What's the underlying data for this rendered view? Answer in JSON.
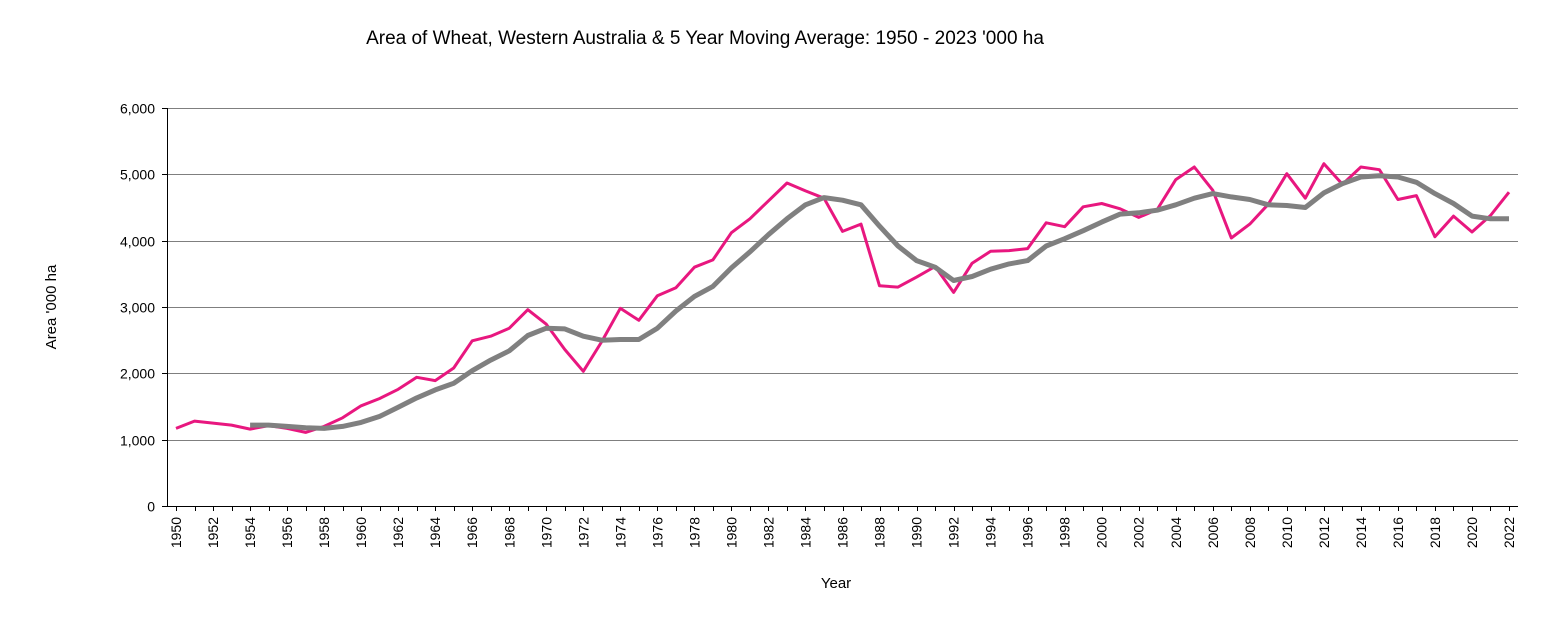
{
  "chart_data": {
    "type": "line",
    "title": "Area of Wheat, Western Australia & 5 Year Moving Average: 1950 - 2023 '000 ha",
    "xlabel": "Year",
    "ylabel": "Area '000 ha",
    "ylim": [
      0,
      6000
    ],
    "yticks": [
      0,
      1000,
      2000,
      3000,
      4000,
      5000,
      6000
    ],
    "ytick_labels": [
      "0",
      "1,000",
      "2,000",
      "3,000",
      "4,000",
      "5,000",
      "6,000"
    ],
    "xlim": [
      1950,
      2022
    ],
    "xticks": [
      1950,
      1952,
      1954,
      1956,
      1958,
      1960,
      1962,
      1964,
      1966,
      1968,
      1970,
      1972,
      1974,
      1976,
      1978,
      1980,
      1982,
      1984,
      1986,
      1988,
      1990,
      1992,
      1994,
      1996,
      1998,
      2000,
      2002,
      2004,
      2006,
      2008,
      2010,
      2012,
      2014,
      2016,
      2018,
      2020,
      2022
    ],
    "xtick_labels": [
      "1950",
      "1952",
      "1954",
      "1956",
      "1958",
      "1960",
      "1962",
      "1964",
      "1966",
      "1968",
      "1970",
      "1972",
      "1974",
      "1976",
      "1978",
      "1980",
      "1982",
      "1984",
      "1986",
      "1988",
      "1990",
      "1992",
      "1994",
      "1996",
      "1998",
      "2000",
      "2002",
      "2004",
      "2006",
      "2008",
      "2010",
      "2012",
      "2014",
      "2016",
      "2018",
      "2020",
      "2022"
    ],
    "grid": "horizontal",
    "series": [
      {
        "name": "Area of Wheat",
        "color": "#e8177f",
        "x": [
          1950,
          1951,
          1952,
          1953,
          1954,
          1955,
          1956,
          1957,
          1958,
          1959,
          1960,
          1961,
          1962,
          1963,
          1964,
          1965,
          1966,
          1967,
          1968,
          1969,
          1970,
          1971,
          1972,
          1973,
          1974,
          1975,
          1976,
          1977,
          1978,
          1979,
          1980,
          1981,
          1982,
          1983,
          1984,
          1985,
          1986,
          1987,
          1988,
          1989,
          1990,
          1991,
          1992,
          1993,
          1994,
          1995,
          1996,
          1997,
          1998,
          1999,
          2000,
          2001,
          2002,
          2003,
          2004,
          2005,
          2006,
          2007,
          2008,
          2009,
          2010,
          2011,
          2012,
          2013,
          2014,
          2015,
          2016,
          2017,
          2018,
          2019,
          2020,
          2021,
          2022
        ],
        "values": [
          1170,
          1280,
          1250,
          1220,
          1160,
          1210,
          1170,
          1110,
          1200,
          1330,
          1510,
          1620,
          1760,
          1940,
          1890,
          2080,
          2490,
          2560,
          2680,
          2960,
          2740,
          2360,
          2030,
          2480,
          2980,
          2800,
          3170,
          3290,
          3600,
          3710,
          4120,
          4330,
          4600,
          4870,
          4750,
          4640,
          4140,
          4250,
          3320,
          3300,
          3450,
          3610,
          3220,
          3660,
          3840,
          3850,
          3880,
          4270,
          4210,
          4510,
          4560,
          4480,
          4350,
          4470,
          4920,
          5110,
          4760,
          4040,
          4250,
          4550,
          5010,
          4640,
          5160,
          4850,
          5110,
          5070,
          4620,
          4680,
          4060,
          4370,
          4130,
          4380,
          4730
        ]
      },
      {
        "name": "5 Year Moving Average",
        "color": "#808080",
        "x": [
          1954,
          1955,
          1956,
          1957,
          1958,
          1959,
          1960,
          1961,
          1962,
          1963,
          1964,
          1965,
          1966,
          1967,
          1968,
          1969,
          1970,
          1971,
          1972,
          1973,
          1974,
          1975,
          1976,
          1977,
          1978,
          1979,
          1980,
          1981,
          1982,
          1983,
          1984,
          1985,
          1986,
          1987,
          1988,
          1989,
          1990,
          1991,
          1992,
          1993,
          1994,
          1995,
          1996,
          1997,
          1998,
          1999,
          2000,
          2001,
          2002,
          2003,
          2004,
          2005,
          2006,
          2007,
          2008,
          2009,
          2010,
          2011,
          2012,
          2013,
          2014,
          2015,
          2016,
          2017,
          2018,
          2019,
          2020,
          2021,
          2022
        ],
        "values": [
          1220,
          1220,
          1200,
          1180,
          1170,
          1200,
          1260,
          1350,
          1490,
          1630,
          1750,
          1850,
          2040,
          2200,
          2340,
          2570,
          2680,
          2670,
          2560,
          2500,
          2510,
          2510,
          2680,
          2940,
          3160,
          3310,
          3590,
          3830,
          4090,
          4330,
          4540,
          4650,
          4610,
          4540,
          4220,
          3920,
          3700,
          3600,
          3400,
          3460,
          3570,
          3650,
          3700,
          3920,
          4030,
          4150,
          4280,
          4400,
          4420,
          4460,
          4540,
          4640,
          4710,
          4660,
          4620,
          4540,
          4530,
          4500,
          4720,
          4860,
          4960,
          4980,
          4960,
          4880,
          4710,
          4560,
          4370,
          4330,
          4330
        ]
      }
    ]
  }
}
